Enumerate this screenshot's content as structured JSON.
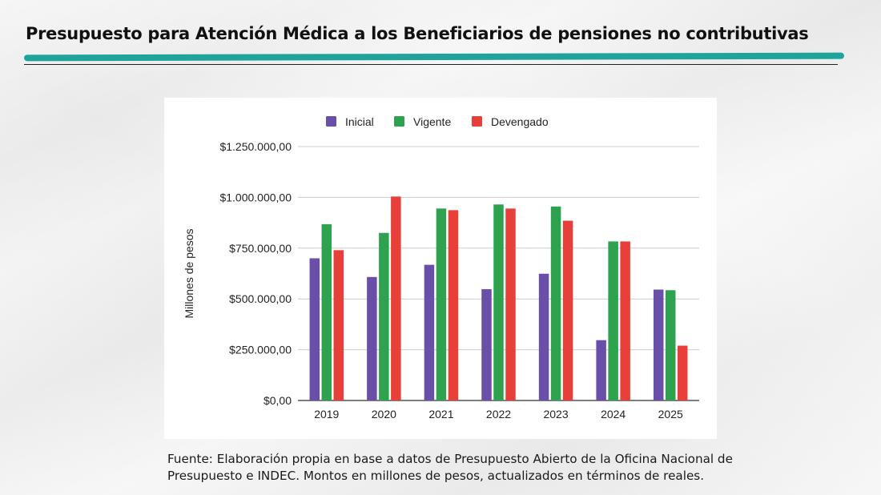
{
  "title": "Presupuesto para Atención Médica a los Beneficiarios de pensiones no contributivas",
  "source_note": "Fuente: Elaboración propia en base a datos de Presupuesto Abierto de la Oficina Nacional de Presupuesto e INDEC. Montos en millones de pesos, actualizados en términos de reales.",
  "colors": {
    "accent": "#1fa39b",
    "Inicial": "#6a4fa8",
    "Vigente": "#2ea24f",
    "Devengado": "#e7403a"
  },
  "chart_data": {
    "type": "bar",
    "categories": [
      "2019",
      "2020",
      "2021",
      "2022",
      "2023",
      "2024",
      "2025"
    ],
    "series": [
      {
        "name": "Inicial",
        "values": [
          700000,
          608000,
          668000,
          548000,
          624000,
          297000,
          546000
        ]
      },
      {
        "name": "Vigente",
        "values": [
          868000,
          825000,
          945000,
          965000,
          955000,
          783000,
          543000
        ]
      },
      {
        "name": "Devengado",
        "values": [
          740000,
          1004000,
          937000,
          945000,
          885000,
          783000,
          270000
        ]
      }
    ],
    "ylabel": "Millones de pesos",
    "xlabel": "",
    "ylim": [
      0,
      1250000
    ],
    "yticks": [
      0,
      250000,
      500000,
      750000,
      1000000,
      1250000
    ],
    "ytick_labels": [
      "$0,00",
      "$250.000,00",
      "$500.000,00",
      "$750.000,00",
      "$1.000.000,00",
      "$1.250.000,00"
    ],
    "legend_position": "top",
    "grid": true
  }
}
